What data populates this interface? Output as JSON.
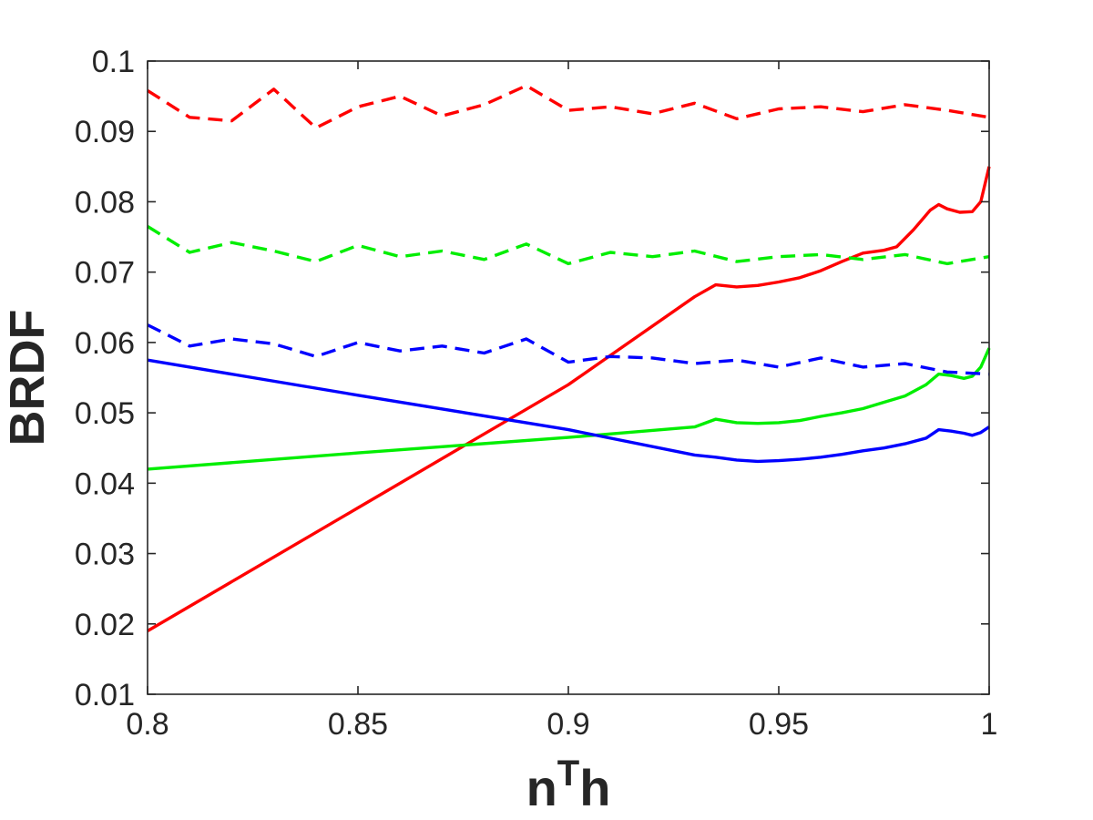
{
  "chart_data": {
    "type": "line",
    "title": "",
    "xlabel": "n",
    "xlabel_superscript": "T",
    "xlabel_suffix": "h",
    "ylabel": "BRDF",
    "xlim": [
      0.8,
      1.0
    ],
    "ylim": [
      0.01,
      0.1
    ],
    "xticks": [
      0.8,
      0.85,
      0.9,
      0.95,
      1.0
    ],
    "xtick_labels": [
      "0.8",
      "0.85",
      "0.9",
      "0.95",
      "1"
    ],
    "yticks": [
      0.01,
      0.02,
      0.03,
      0.04,
      0.05,
      0.06,
      0.07,
      0.08,
      0.09,
      0.1
    ],
    "ytick_labels": [
      "0.01",
      "0.02",
      "0.03",
      "0.04",
      "0.05",
      "0.06",
      "0.07",
      "0.08",
      "0.09",
      "0.1"
    ],
    "grid": false,
    "legend": "none",
    "series": [
      {
        "color": "#ff0000",
        "style": "solid",
        "x": [
          0.8,
          0.85,
          0.9,
          0.93,
          0.935,
          0.94,
          0.945,
          0.95,
          0.955,
          0.96,
          0.965,
          0.97,
          0.975,
          0.978,
          0.982,
          0.986,
          0.988,
          0.99,
          0.993,
          0.996,
          0.998,
          1.0
        ],
        "y": [
          0.019,
          0.0365,
          0.054,
          0.0665,
          0.0682,
          0.0679,
          0.0681,
          0.0686,
          0.0692,
          0.0702,
          0.0715,
          0.0727,
          0.0731,
          0.0736,
          0.076,
          0.0788,
          0.0796,
          0.079,
          0.0785,
          0.0786,
          0.08,
          0.085
        ]
      },
      {
        "color": "#00ee00",
        "style": "solid",
        "x": [
          0.8,
          0.85,
          0.9,
          0.93,
          0.935,
          0.94,
          0.945,
          0.95,
          0.955,
          0.96,
          0.965,
          0.97,
          0.975,
          0.98,
          0.985,
          0.988,
          0.991,
          0.994,
          0.996,
          0.998,
          1.0
        ],
        "y": [
          0.042,
          0.0443,
          0.0465,
          0.048,
          0.0491,
          0.0486,
          0.0485,
          0.0486,
          0.0489,
          0.0495,
          0.05,
          0.0506,
          0.0515,
          0.0524,
          0.054,
          0.0555,
          0.0553,
          0.0549,
          0.0552,
          0.0565,
          0.0592
        ]
      },
      {
        "color": "#0000ff",
        "style": "solid",
        "x": [
          0.8,
          0.85,
          0.9,
          0.93,
          0.935,
          0.94,
          0.945,
          0.95,
          0.955,
          0.96,
          0.965,
          0.97,
          0.975,
          0.98,
          0.985,
          0.988,
          0.991,
          0.994,
          0.996,
          0.998,
          1.0
        ],
        "y": [
          0.0575,
          0.0525,
          0.0476,
          0.044,
          0.0437,
          0.0433,
          0.0431,
          0.0432,
          0.0434,
          0.0437,
          0.0441,
          0.0446,
          0.045,
          0.0456,
          0.0464,
          0.0476,
          0.0474,
          0.0471,
          0.0468,
          0.0472,
          0.048
        ]
      },
      {
        "color": "#ff0000",
        "style": "dashed",
        "x": [
          0.8,
          0.81,
          0.82,
          0.83,
          0.84,
          0.85,
          0.86,
          0.87,
          0.88,
          0.89,
          0.9,
          0.91,
          0.92,
          0.93,
          0.94,
          0.95,
          0.96,
          0.97,
          0.98,
          0.99,
          1.0
        ],
        "y": [
          0.0958,
          0.092,
          0.0915,
          0.096,
          0.0905,
          0.0935,
          0.095,
          0.0922,
          0.0938,
          0.0965,
          0.093,
          0.0935,
          0.0925,
          0.094,
          0.0918,
          0.0932,
          0.0935,
          0.0928,
          0.0938,
          0.093,
          0.092
        ]
      },
      {
        "color": "#00ee00",
        "style": "dashed",
        "x": [
          0.8,
          0.81,
          0.82,
          0.83,
          0.84,
          0.85,
          0.86,
          0.87,
          0.88,
          0.89,
          0.9,
          0.91,
          0.92,
          0.93,
          0.94,
          0.95,
          0.96,
          0.97,
          0.98,
          0.99,
          1.0
        ],
        "y": [
          0.0765,
          0.0728,
          0.0742,
          0.073,
          0.0715,
          0.0738,
          0.0722,
          0.073,
          0.0718,
          0.074,
          0.0712,
          0.0728,
          0.0722,
          0.073,
          0.0715,
          0.0722,
          0.0725,
          0.0718,
          0.0725,
          0.0712,
          0.0722
        ]
      },
      {
        "color": "#0000ff",
        "style": "dashed",
        "x": [
          0.8,
          0.81,
          0.82,
          0.83,
          0.84,
          0.85,
          0.86,
          0.87,
          0.88,
          0.89,
          0.9,
          0.91,
          0.92,
          0.93,
          0.94,
          0.95,
          0.96,
          0.97,
          0.98,
          0.99,
          1.0
        ],
        "y": [
          0.0625,
          0.0595,
          0.0605,
          0.0598,
          0.058,
          0.06,
          0.0588,
          0.0595,
          0.0585,
          0.0605,
          0.0572,
          0.058,
          0.0578,
          0.057,
          0.0575,
          0.0565,
          0.0578,
          0.0565,
          0.057,
          0.0558,
          0.0555
        ]
      }
    ]
  }
}
